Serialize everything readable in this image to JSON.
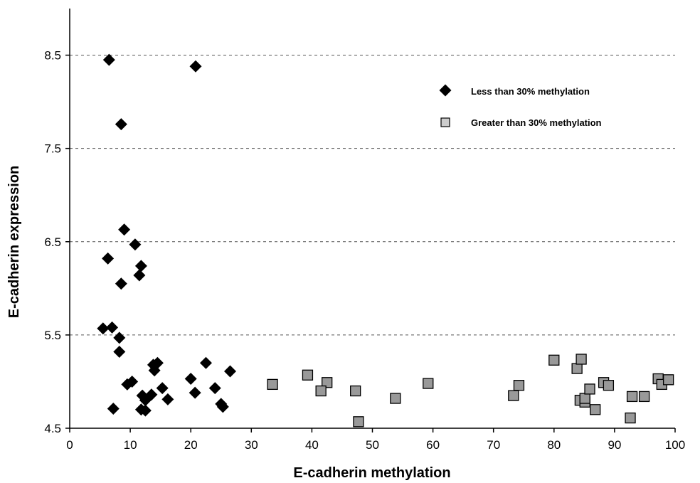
{
  "chart_data": {
    "type": "scatter",
    "title": "",
    "xlabel": "E-cadherin methylation",
    "ylabel": "E-cadherin expression",
    "xlim": [
      0,
      100
    ],
    "ylim": [
      4.5,
      9.0
    ],
    "x_ticks": [
      0,
      10,
      20,
      30,
      40,
      50,
      60,
      70,
      80,
      90,
      100
    ],
    "y_ticks": [
      4.5,
      5.5,
      6.5,
      7.5,
      8.5
    ],
    "y_tick_labels": [
      "4.5",
      "5.5",
      "6.5",
      "7.5",
      "8.5"
    ],
    "grid": "horizontal dashed lines at y ticks",
    "legend_position": "top-right",
    "series": [
      {
        "name": "Less than 30% methylation",
        "marker": "diamond",
        "color": "#000000",
        "points": [
          [
            6.5,
            8.45
          ],
          [
            20.8,
            8.38
          ],
          [
            8.5,
            7.76
          ],
          [
            9.0,
            6.63
          ],
          [
            6.3,
            6.32
          ],
          [
            10.8,
            6.47
          ],
          [
            11.8,
            6.24
          ],
          [
            11.5,
            6.14
          ],
          [
            8.5,
            6.05
          ],
          [
            5.5,
            5.57
          ],
          [
            7.0,
            5.58
          ],
          [
            8.2,
            5.47
          ],
          [
            8.2,
            5.32
          ],
          [
            14.5,
            5.2
          ],
          [
            13.8,
            5.18
          ],
          [
            14.0,
            5.12
          ],
          [
            22.5,
            5.2
          ],
          [
            26.5,
            5.11
          ],
          [
            20.0,
            5.03
          ],
          [
            10.3,
            5.0
          ],
          [
            9.5,
            4.97
          ],
          [
            15.3,
            4.93
          ],
          [
            24.0,
            4.93
          ],
          [
            20.7,
            4.88
          ],
          [
            13.5,
            4.86
          ],
          [
            12.0,
            4.85
          ],
          [
            12.5,
            4.8
          ],
          [
            16.2,
            4.81
          ],
          [
            25.0,
            4.76
          ],
          [
            25.3,
            4.73
          ],
          [
            7.2,
            4.71
          ],
          [
            11.8,
            4.7
          ],
          [
            12.5,
            4.69
          ]
        ]
      },
      {
        "name": "Greater than 30% methylation",
        "marker": "square",
        "color": "#999999",
        "points": [
          [
            33.5,
            4.97
          ],
          [
            39.3,
            5.07
          ],
          [
            42.5,
            4.99
          ],
          [
            41.5,
            4.9
          ],
          [
            47.2,
            4.9
          ],
          [
            47.7,
            4.57
          ],
          [
            53.8,
            4.82
          ],
          [
            59.2,
            4.98
          ],
          [
            73.3,
            4.85
          ],
          [
            74.2,
            4.96
          ],
          [
            80.0,
            5.23
          ],
          [
            83.8,
            5.14
          ],
          [
            84.5,
            5.24
          ],
          [
            84.3,
            4.8
          ],
          [
            85.1,
            4.78
          ],
          [
            85.1,
            4.82
          ],
          [
            85.9,
            4.92
          ],
          [
            86.8,
            4.7
          ],
          [
            88.2,
            4.99
          ],
          [
            89.0,
            4.96
          ],
          [
            92.6,
            4.61
          ],
          [
            92.9,
            4.84
          ],
          [
            94.9,
            4.84
          ],
          [
            97.2,
            5.03
          ],
          [
            97.8,
            4.97
          ],
          [
            98.9,
            5.02
          ]
        ]
      }
    ]
  }
}
